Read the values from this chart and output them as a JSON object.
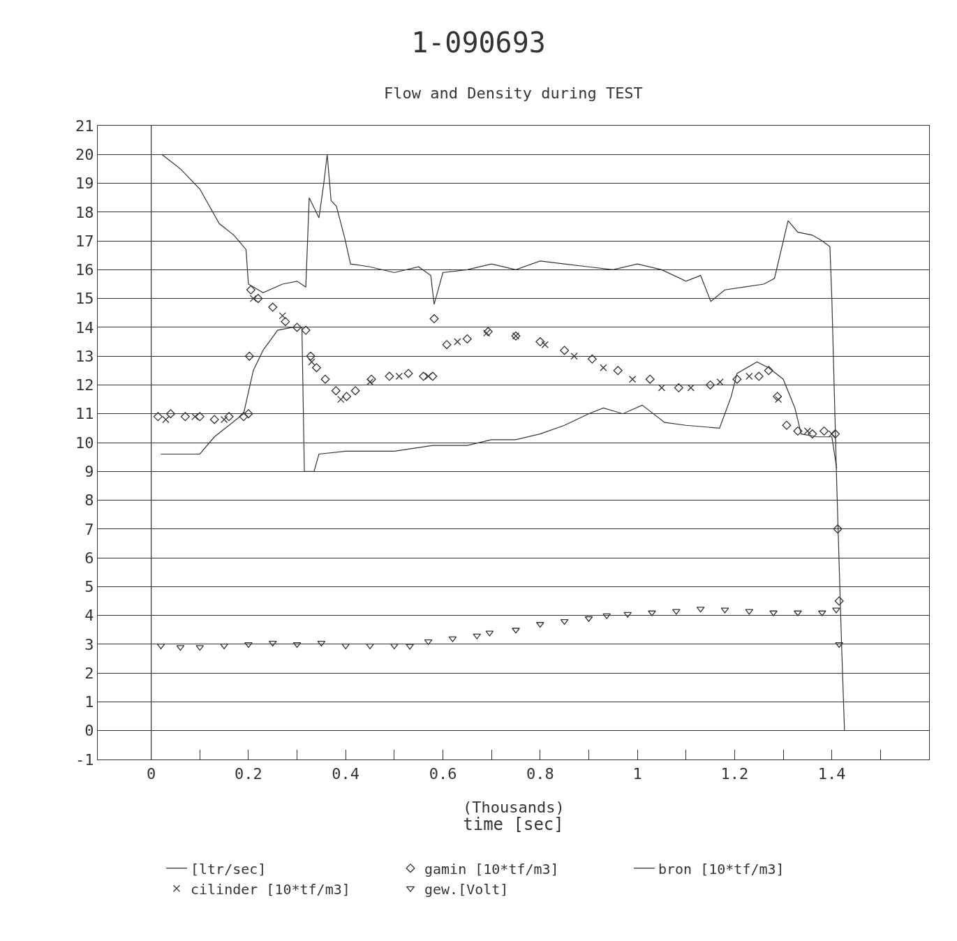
{
  "chart_data": {
    "type": "line",
    "title": "1-090693",
    "subtitle": "Flow and Density during TEST",
    "xlabel": "time [sec]",
    "annotations": [
      "(Thousands)"
    ],
    "xlim": [
      -0.11,
      1.6
    ],
    "ylim": [
      -1,
      21
    ],
    "xticks": [
      0,
      {
        "value": 0.1,
        "label": null
      },
      0.2,
      {
        "value": 0.3,
        "label": null
      },
      0.4,
      {
        "value": 0.5,
        "label": null
      },
      0.6,
      {
        "value": 0.7,
        "label": null
      },
      0.8,
      {
        "value": 0.9,
        "label": null
      },
      1,
      {
        "value": 1.1,
        "label": null
      },
      1.2,
      {
        "value": 1.3,
        "label": null
      },
      1.4,
      {
        "value": 1.5,
        "label": null
      }
    ],
    "yticks": [
      -1,
      0,
      1,
      2,
      3,
      4,
      5,
      6,
      7,
      8,
      9,
      10,
      11,
      12,
      13,
      14,
      15,
      16,
      17,
      18,
      19,
      20,
      21
    ],
    "grid": "y",
    "legend": "bottom",
    "ref_lines": [
      {
        "axis": "x",
        "value": 0,
        "color": "#333333"
      }
    ],
    "series": [
      {
        "name": "[ltr/sec]",
        "color": "#333333",
        "marker": "none",
        "x": [
          0.022,
          0.06,
          0.1,
          0.14,
          0.17,
          0.195,
          0.2,
          0.23,
          0.27,
          0.3,
          0.318,
          0.325,
          0.345,
          0.355,
          0.362,
          0.37,
          0.381,
          0.398,
          0.41,
          0.45,
          0.5,
          0.55,
          0.575,
          0.582,
          0.6,
          0.65,
          0.7,
          0.75,
          0.8,
          0.85,
          0.9,
          0.95,
          1.0,
          1.05,
          1.1,
          1.13,
          1.151,
          1.18,
          1.22,
          1.26,
          1.282,
          1.31,
          1.33,
          1.36,
          1.38,
          1.396,
          1.4,
          1.41,
          1.42,
          1.426
        ],
        "values": [
          20.0,
          19.5,
          18.8,
          17.6,
          17.2,
          16.7,
          15.5,
          15.2,
          15.5,
          15.6,
          15.4,
          18.5,
          17.8,
          19.0,
          20.0,
          18.4,
          18.2,
          17.1,
          16.2,
          16.1,
          15.9,
          16.1,
          15.8,
          14.8,
          15.9,
          16.0,
          16.2,
          16.0,
          16.3,
          16.2,
          16.1,
          16.0,
          16.2,
          16.0,
          15.6,
          15.8,
          14.9,
          15.3,
          15.4,
          15.5,
          15.7,
          17.7,
          17.3,
          17.2,
          17.0,
          16.8,
          15.0,
          8.6,
          3.0,
          0.0
        ]
      },
      {
        "name": "gamin [10*tf/m3]",
        "type": "scatter",
        "color": "#333333",
        "marker": "diamond",
        "x": [
          0.014,
          0.04,
          0.07,
          0.1,
          0.13,
          0.16,
          0.19,
          0.2,
          0.202,
          0.205,
          0.22,
          0.25,
          0.276,
          0.3,
          0.318,
          0.328,
          0.34,
          0.358,
          0.38,
          0.402,
          0.42,
          0.453,
          0.49,
          0.529,
          0.56,
          0.579,
          0.582,
          0.608,
          0.65,
          0.693,
          0.75,
          0.8,
          0.85,
          0.907,
          0.96,
          1.026,
          1.085,
          1.15,
          1.205,
          1.25,
          1.27,
          1.288,
          1.307,
          1.33,
          1.36,
          1.384,
          1.407,
          1.412,
          1.415
        ],
        "values": [
          10.9,
          11.0,
          10.9,
          10.9,
          10.8,
          10.9,
          10.9,
          11.0,
          13.0,
          15.3,
          15.0,
          14.7,
          14.2,
          14.0,
          13.9,
          13.0,
          12.6,
          12.2,
          11.8,
          11.6,
          11.8,
          12.2,
          12.3,
          12.4,
          12.3,
          12.3,
          14.3,
          13.4,
          13.6,
          13.85,
          13.7,
          13.5,
          13.2,
          12.9,
          12.5,
          12.2,
          11.9,
          12.0,
          12.2,
          12.3,
          12.5,
          11.6,
          10.6,
          10.4,
          10.3,
          10.4,
          10.3,
          7.0,
          4.5
        ]
      },
      {
        "name": "bron [10*tf/m3]",
        "color": "#333333",
        "marker": "none",
        "x": [
          0.02,
          0.06,
          0.1,
          0.13,
          0.16,
          0.19,
          0.21,
          0.23,
          0.26,
          0.29,
          0.31,
          0.315,
          0.335,
          0.345,
          0.4,
          0.5,
          0.579,
          0.65,
          0.7,
          0.75,
          0.8,
          0.85,
          0.9,
          0.93,
          0.97,
          1.01,
          1.056,
          1.1,
          1.169,
          1.193,
          1.205,
          1.246,
          1.27,
          1.3,
          1.324,
          1.337,
          1.37,
          1.4,
          1.41
        ],
        "values": [
          9.6,
          9.6,
          9.6,
          10.2,
          10.6,
          11.0,
          12.5,
          13.2,
          13.9,
          14.0,
          14.0,
          9.0,
          9.0,
          9.6,
          9.7,
          9.7,
          9.9,
          9.9,
          10.1,
          10.1,
          10.3,
          10.6,
          11.0,
          11.2,
          11.0,
          11.3,
          10.7,
          10.6,
          10.5,
          11.6,
          12.4,
          12.8,
          12.6,
          12.2,
          11.2,
          10.3,
          10.2,
          10.2,
          9.1
        ]
      },
      {
        "name": "cilinder [10*tf/m3]",
        "type": "scatter",
        "color": "#333333",
        "marker": "cross",
        "x": [
          0.03,
          0.09,
          0.15,
          0.21,
          0.27,
          0.33,
          0.39,
          0.45,
          0.51,
          0.57,
          0.63,
          0.69,
          0.75,
          0.81,
          0.87,
          0.93,
          0.99,
          1.05,
          1.11,
          1.17,
          1.23,
          1.29,
          1.35,
          1.4
        ],
        "values": [
          10.8,
          10.9,
          10.8,
          15.0,
          14.4,
          12.8,
          11.5,
          12.1,
          12.3,
          12.3,
          13.5,
          13.8,
          13.7,
          13.4,
          13.0,
          12.6,
          12.2,
          11.9,
          11.9,
          12.1,
          12.3,
          11.5,
          10.4,
          10.3
        ]
      },
      {
        "name": "gew.[Volt]",
        "type": "scatter",
        "color": "#333333",
        "marker": "triangle",
        "x": [
          0.02,
          0.06,
          0.1,
          0.15,
          0.2,
          0.25,
          0.3,
          0.35,
          0.4,
          0.45,
          0.5,
          0.532,
          0.57,
          0.62,
          0.67,
          0.696,
          0.75,
          0.8,
          0.85,
          0.9,
          0.937,
          0.98,
          1.03,
          1.08,
          1.13,
          1.18,
          1.23,
          1.28,
          1.33,
          1.38,
          1.409,
          1.415
        ],
        "values": [
          2.95,
          2.9,
          2.9,
          2.95,
          3.0,
          3.05,
          3.0,
          3.05,
          2.95,
          2.95,
          2.95,
          2.94,
          3.1,
          3.2,
          3.3,
          3.4,
          3.5,
          3.7,
          3.8,
          3.9,
          4.0,
          4.05,
          4.1,
          4.15,
          4.23,
          4.2,
          4.15,
          4.1,
          4.1,
          4.1,
          4.2,
          3.0
        ]
      }
    ]
  }
}
